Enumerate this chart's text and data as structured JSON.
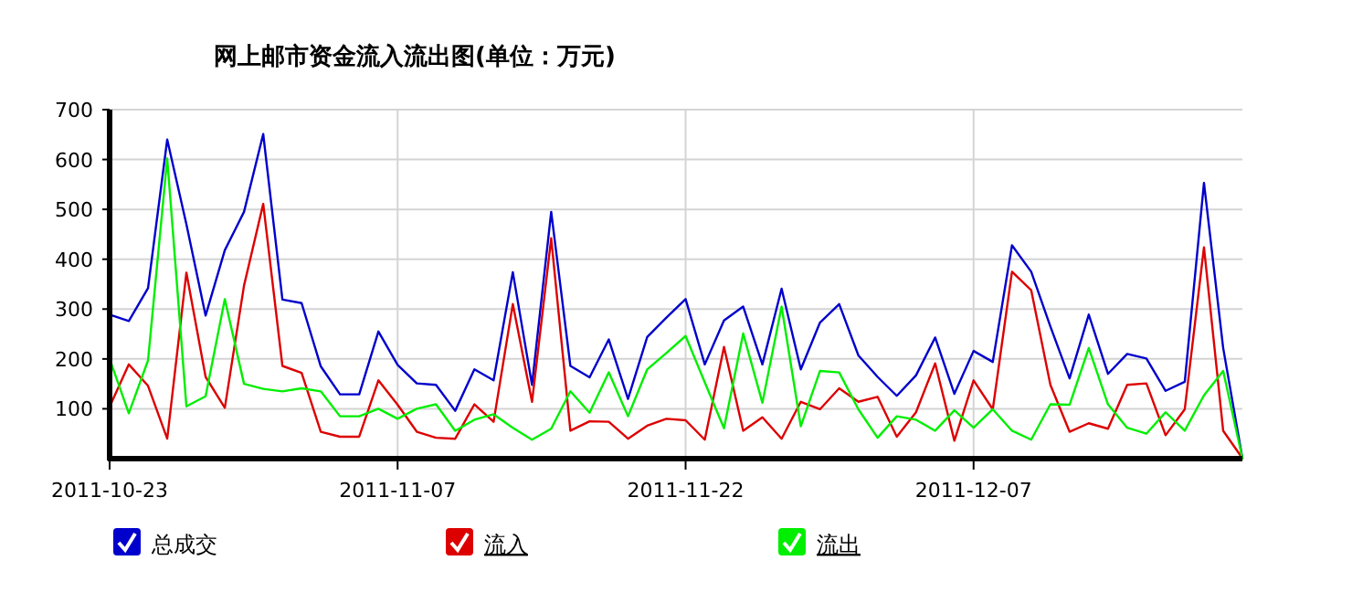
{
  "chart_data": {
    "type": "line",
    "title": "网上邮市资金流入流出图(单位：万元)",
    "x": [
      "2011-10-23",
      "2011-10-24",
      "2011-10-25",
      "2011-10-26",
      "2011-10-27",
      "2011-10-28",
      "2011-10-29",
      "2011-10-30",
      "2011-10-31",
      "2011-11-01",
      "2011-11-02",
      "2011-11-03",
      "2011-11-04",
      "2011-11-05",
      "2011-11-06",
      "2011-11-07",
      "2011-11-08",
      "2011-11-09",
      "2011-11-10",
      "2011-11-11",
      "2011-11-12",
      "2011-11-13",
      "2011-11-14",
      "2011-11-15",
      "2011-11-16",
      "2011-11-17",
      "2011-11-18",
      "2011-11-19",
      "2011-11-20",
      "2011-11-21",
      "2011-11-22",
      "2011-11-23",
      "2011-11-24",
      "2011-11-25",
      "2011-11-26",
      "2011-11-27",
      "2011-11-28",
      "2011-11-29",
      "2011-11-30",
      "2011-12-01",
      "2011-12-02",
      "2011-12-03",
      "2011-12-04",
      "2011-12-05",
      "2011-12-06",
      "2011-12-07",
      "2011-12-08",
      "2011-12-09",
      "2011-12-10",
      "2011-12-11",
      "2011-12-12",
      "2011-12-13",
      "2011-12-14",
      "2011-12-15",
      "2011-12-16",
      "2011-12-17",
      "2011-12-18",
      "2011-12-19",
      "2011-12-20",
      "2011-12-21"
    ],
    "series": [
      {
        "name": "总成交",
        "color": "#0000cc",
        "values": [
          289,
          276,
          342,
          640,
          470,
          287,
          418,
          495,
          651,
          319,
          312,
          185,
          129,
          129,
          255,
          188,
          151,
          148,
          96,
          179,
          157,
          374,
          148,
          495,
          186,
          163,
          239,
          120,
          244,
          283,
          320,
          189,
          277,
          305,
          189,
          341,
          179,
          273,
          310,
          207,
          164,
          126,
          167,
          243,
          130,
          216,
          194,
          428,
          375,
          265,
          161,
          289,
          170,
          210,
          201,
          136,
          154,
          553,
          222,
          1
        ]
      },
      {
        "name": "流入",
        "color": "#dd0000",
        "values": [
          104,
          189,
          146,
          40,
          373,
          164,
          102,
          347,
          511,
          186,
          172,
          54,
          44,
          44,
          157,
          108,
          54,
          42,
          40,
          109,
          74,
          310,
          114,
          442,
          56,
          75,
          74,
          40,
          66,
          80,
          77,
          38,
          224,
          56,
          83,
          40,
          114,
          99,
          141,
          114,
          124,
          44,
          93,
          191,
          36,
          157,
          99,
          375,
          338,
          148,
          54,
          71,
          60,
          148,
          151,
          47,
          99,
          424,
          56,
          1
        ]
      },
      {
        "name": "流出",
        "color": "#00ee00",
        "values": [
          200,
          91,
          197,
          602,
          105,
          125,
          320,
          150,
          140,
          135,
          141,
          135,
          85,
          85,
          100,
          80,
          100,
          109,
          56,
          78,
          89,
          62,
          38,
          60,
          135,
          92,
          173,
          85,
          179,
          212,
          246,
          153,
          61,
          251,
          112,
          305,
          65,
          176,
          173,
          99,
          42,
          85,
          78,
          56,
          97,
          62,
          99,
          56,
          38,
          109,
          108,
          222,
          109,
          62,
          50,
          93,
          56,
          127,
          176,
          1
        ]
      }
    ],
    "xlim": [
      "2011-10-23",
      "2011-12-21"
    ],
    "xticks": [
      "2011-10-23",
      "2011-11-07",
      "2011-11-22",
      "2011-12-07"
    ],
    "ylim": [
      0,
      700
    ],
    "yticks": [
      100,
      200,
      300,
      400,
      500,
      600,
      700
    ],
    "grid": true,
    "legend": "bottom",
    "marker": "none",
    "line_style": "solid"
  }
}
